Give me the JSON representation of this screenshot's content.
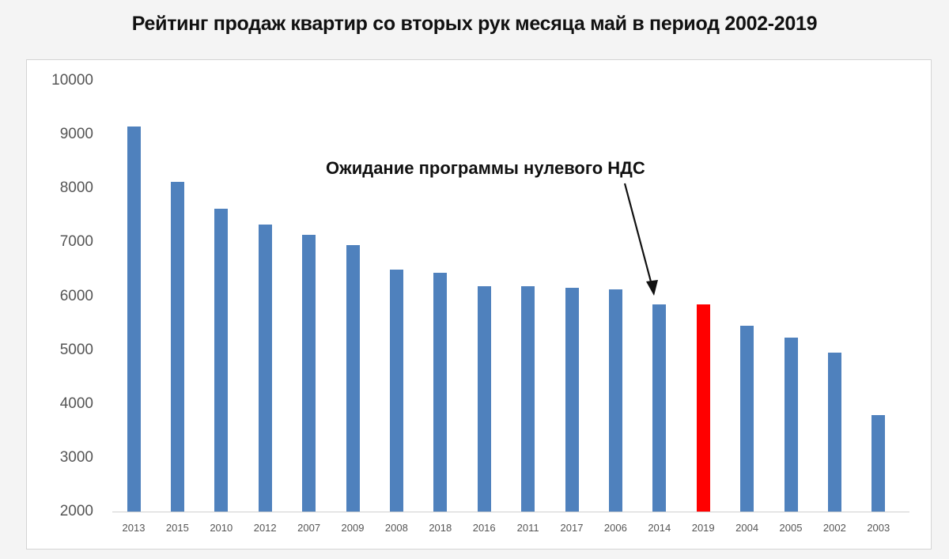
{
  "chart_data": {
    "type": "bar",
    "title": "Рейтинг продаж квартир со вторых рук месяца май  в период 2002-2019",
    "xlabel": "",
    "ylabel": "",
    "ylim": [
      2000,
      10000
    ],
    "yticks": [
      2000,
      3000,
      4000,
      5000,
      6000,
      7000,
      8000,
      9000,
      10000
    ],
    "grid": false,
    "legend": null,
    "categories": [
      "2013",
      "2015",
      "2010",
      "2012",
      "2007",
      "2009",
      "2008",
      "2018",
      "2016",
      "2011",
      "2017",
      "2006",
      "2014",
      "2019",
      "2004",
      "2005",
      "2002",
      "2003"
    ],
    "values": [
      9150,
      8120,
      7620,
      7330,
      7140,
      6950,
      6490,
      6430,
      6180,
      6180,
      6160,
      6130,
      5850,
      5850,
      5450,
      5230,
      4950,
      3790
    ],
    "colors": {
      "default": "#4f81bd",
      "highlight": "#ff0000",
      "highlight_category": "2019"
    },
    "annotations": [
      {
        "text": "Ожидание программы нулевого НДС",
        "points_to": "2014"
      }
    ]
  },
  "title": "Рейтинг продаж квартир со вторых рук месяца май  в период 2002-2019",
  "annotation": "Ожидание программы нулевого НДС"
}
